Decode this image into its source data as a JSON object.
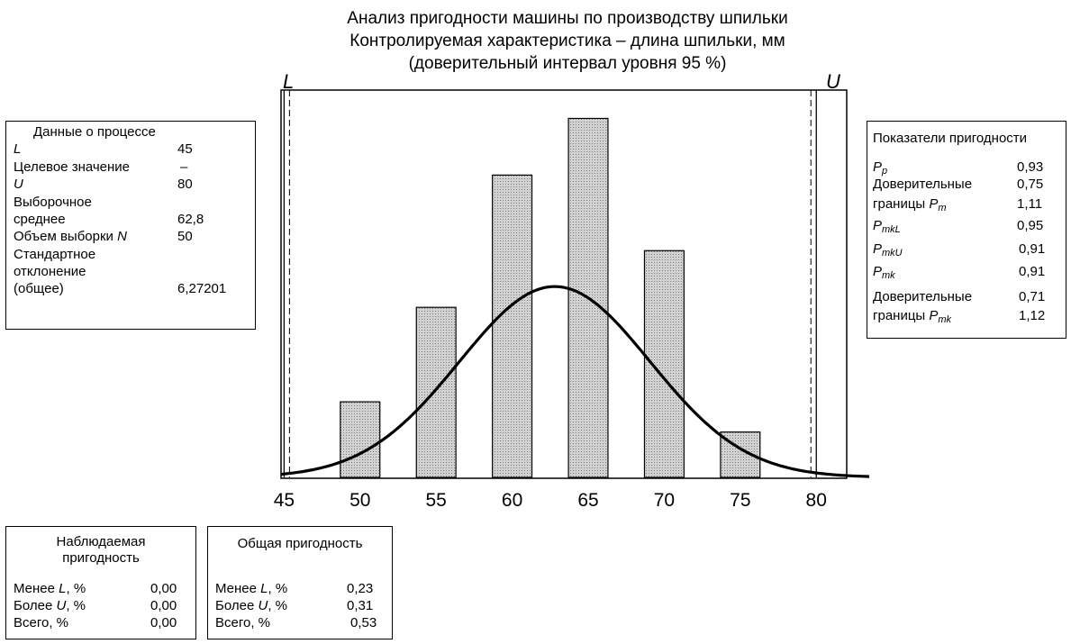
{
  "title": {
    "line1": "Анализ пригодности машины по производству шпильки",
    "line2": "Контролируемая характеристика – длина шпильки, мм",
    "line3": "(доверительный интервал уровня 95 %)"
  },
  "limits": {
    "lower_label": "L",
    "upper_label": "U"
  },
  "process_data": {
    "title": "Данные о процессе",
    "L_label": "L",
    "L_value": "45",
    "target_label": "Целевое значение",
    "target_value": "–",
    "U_label": "U",
    "U_value": "80",
    "mean_label1": "Выборочное",
    "mean_label2": "среднее",
    "mean_value": "62,8",
    "n_label_prefix": "Объем выборки ",
    "n_label_var": "N",
    "n_value": "50",
    "sd_label1": "Стандартное",
    "sd_label2": "отклонение",
    "sd_label3": "(общее)",
    "sd_value": "6,27201"
  },
  "capability": {
    "title": "Показатели пригодности",
    "pp_main": "P",
    "pp_sub": "p",
    "pp_value": "0,93",
    "ci1_label1": "Доверительные",
    "ci1_label2": "границы ",
    "ci1_var": "P",
    "ci1_sub": "m",
    "ci1_low": "0,75",
    "ci1_high": "1,11",
    "pmkl_main": "P",
    "pmkl_sub": "mkL",
    "pmkl_value": "0,95",
    "pmku_main": "P",
    "pmku_sub": "mkU",
    "pmku_value": "0,91",
    "pmk_main": "P",
    "pmk_sub": "mk",
    "pmk_value": "0,91",
    "ci2_label1": "Доверительные",
    "ci2_label2": "границы ",
    "ci2_var": "P",
    "ci2_sub": "mk",
    "ci2_low": "0,71",
    "ci2_high": "1,12"
  },
  "observed": {
    "title1": "Наблюдаемая",
    "title2": "пригодность",
    "less_prefix": "Менее ",
    "less_var": "L",
    "less_suffix": ", %",
    "less_value": "0,00",
    "more_prefix": "Более ",
    "more_var": "U",
    "more_suffix": ", %",
    "more_value": "0,00",
    "total_label": "Всего, %",
    "total_value": "0,00"
  },
  "overall": {
    "title": "Общая пригодность",
    "less_prefix": "Менее ",
    "less_var": "L",
    "less_suffix": ", %",
    "less_value": "0,23",
    "more_prefix": "Более ",
    "more_var": "U",
    "more_suffix": ", %",
    "more_value": "0,31",
    "total_label": "Всего, %",
    "total_value": "0,53"
  },
  "chart_data": {
    "type": "bar",
    "bin_centers": [
      50,
      55,
      60,
      65,
      70,
      75
    ],
    "bin_width": 2.6,
    "values": [
      4,
      9,
      16,
      19,
      12,
      2.4
    ],
    "xlim": [
      44.8,
      82
    ],
    "ylim": [
      0,
      20.5
    ],
    "x_ticks": [
      "45",
      "50",
      "55",
      "60",
      "65",
      "70",
      "75",
      "80"
    ],
    "normal_curve": {
      "mean": 62.8,
      "sd": 6.27201,
      "peak": 10.1
    },
    "lower_limit": 45,
    "upper_limit": 80,
    "colors": {
      "bar_fill": "#c8c8c8",
      "curve": "#000000"
    }
  }
}
